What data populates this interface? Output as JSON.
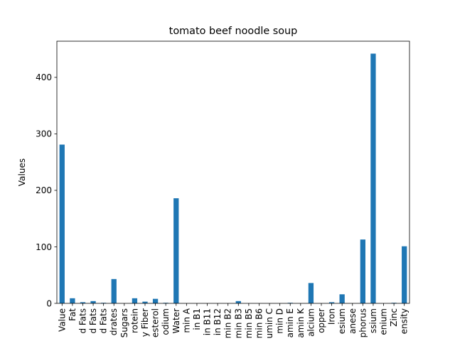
{
  "chart_data": {
    "type": "bar",
    "title": "tomato beef noodle soup",
    "xlabel": "",
    "ylabel": "Values",
    "categories": [
      "Value",
      "Fat",
      "d Fats",
      "d Fats",
      "d Fats",
      "drates",
      "Sugars",
      "rotein",
      "y Fiber",
      "esterol",
      "odium",
      "Water",
      "min A",
      "in B1",
      "in B11",
      "in B12",
      "min B2",
      "min B3",
      "min B5",
      "min B6",
      "umin C",
      "min D",
      "amin E",
      "amin K",
      "alcium",
      "opper",
      "Iron",
      "esium",
      "anese",
      "phorus",
      "ssium",
      "enium",
      "Zinc",
      "ensity"
    ],
    "values": [
      281,
      9,
      2,
      4,
      1,
      43,
      0,
      9,
      3,
      8,
      1,
      186,
      0,
      0,
      0,
      0,
      0,
      4,
      0,
      0,
      0,
      0,
      1,
      0,
      36,
      0,
      2,
      16,
      0,
      113,
      442,
      0,
      1,
      101
    ],
    "ylim": [
      0,
      464
    ],
    "yticks": [
      0,
      100,
      200,
      300,
      400
    ],
    "bar_color": "#1f77b4",
    "grid": false,
    "legend": "none"
  }
}
